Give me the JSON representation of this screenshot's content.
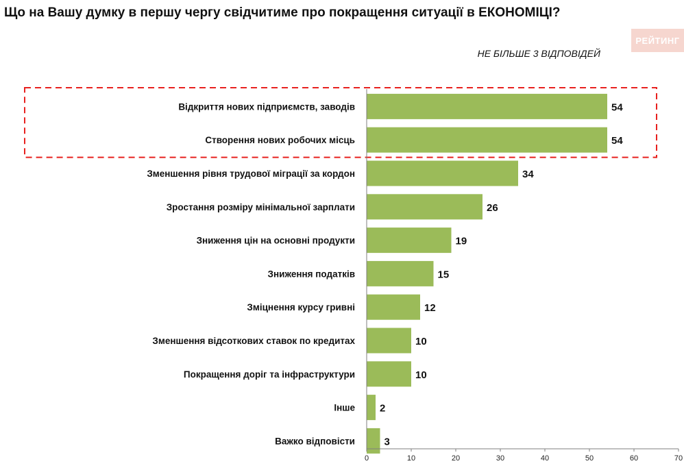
{
  "title": "Що на Вашу думку в першу чергу свідчитиме про покращення ситуації в ЕКОНОМІЦІ?",
  "subtitle": "НЕ БІЛЬШЕ 3 ВІДПОВІДЕЙ",
  "brand": "РЕЙТИНГ",
  "colors": {
    "bar": "#9bbb59",
    "highlight": "#e8201e",
    "axis": "#7f7f7f"
  },
  "chart_data": {
    "type": "bar",
    "orientation": "horizontal",
    "categories": [
      "Відкриття нових підприємств, заводів",
      "Створення нових робочих місць",
      "Зменшення рівня трудової міграції за кордон",
      "Зростання розміру мінімальної зарплати",
      "Зниження цін на основні продукти",
      "Зниження податків",
      "Зміцнення курсу гривні",
      "Зменшення відсоткових ставок по кредитах",
      "Покращення доріг та інфраструктури",
      "Інше",
      "Важко відповісти"
    ],
    "values": [
      54,
      54,
      34,
      26,
      19,
      15,
      12,
      10,
      10,
      2,
      3
    ],
    "value_labels": [
      "54",
      "54",
      "34",
      "26",
      "19",
      "15",
      "12",
      "10",
      "10",
      "2",
      "3"
    ],
    "xlim": [
      0,
      70
    ],
    "xticks": [
      0,
      10,
      20,
      30,
      40,
      50,
      60,
      70
    ],
    "xtick_labels": [
      "0",
      "10",
      "20",
      "30",
      "40",
      "50",
      "60",
      "70"
    ],
    "highlighted_categories": [
      0,
      1
    ],
    "grid": false,
    "legend": "none"
  }
}
